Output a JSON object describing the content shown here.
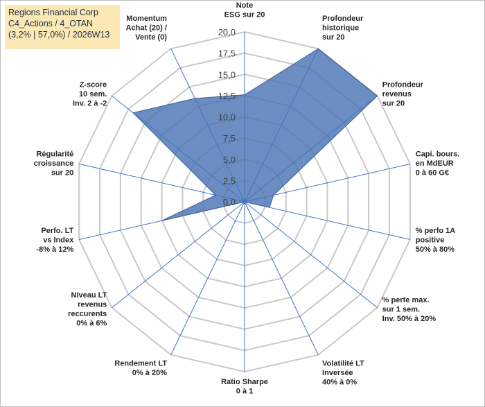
{
  "title_box": {
    "line1": "Regions Financial Corp",
    "line2": "C4_Actions / 4_OTAN",
    "line3": "(3,2% | 57,0%) / 2026W13"
  },
  "colors": {
    "title_bg": "#fbe8b4",
    "area": "#4a74b5",
    "spoke": "#4472c4",
    "grid": "#c8c8c8"
  },
  "chart_data": {
    "type": "radar",
    "range": [
      0,
      20
    ],
    "tick_step": 2.5,
    "tick_labels": [
      "0,0",
      "2,5",
      "5,0",
      "7,5",
      "10,0",
      "12,5",
      "15,0",
      "17,5",
      "20,0"
    ],
    "axes": [
      {
        "lines": [
          "Note",
          "ESG sur 20"
        ],
        "value": 12.6
      },
      {
        "lines": [
          "Profondeur",
          "historique",
          "sur 20"
        ],
        "value": 20.0
      },
      {
        "lines": [
          "Profondeur",
          "revenus",
          "sur 20"
        ],
        "value": 20.0
      },
      {
        "lines": [
          "Capi. bours.",
          "en MdEUR",
          "0 à 60 G€"
        ],
        "value": 3.5
      },
      {
        "lines": [
          "% perfo 1A",
          "positive",
          "50% à 80%"
        ],
        "value": 3.0
      },
      {
        "lines": [
          "% perte max.",
          "sur 1 sem.",
          "Inv. 50% à 20%"
        ],
        "value": 0.0
      },
      {
        "lines": [
          "Volatilité LT",
          "Inversée",
          "40% à 0%"
        ],
        "value": 0.0
      },
      {
        "lines": [
          "Ratio Sharpe",
          "0 à 1"
        ],
        "value": 0.0
      },
      {
        "lines": [
          "Rendement LT",
          "0% à 20%"
        ],
        "value": 0.0
      },
      {
        "lines": [
          "Niveau LT",
          "revenus",
          "reccurents",
          "0% à 6%"
        ],
        "value": 0.0
      },
      {
        "lines": [
          "Perfo. LT",
          "vs Index",
          "-8% à 12%"
        ],
        "value": 10.0
      },
      {
        "lines": [
          "Régularité",
          "croissance",
          "sur 20"
        ],
        "value": 3.5
      },
      {
        "lines": [
          "Z-score",
          "10 sem.",
          "Inv. 2 à -2"
        ],
        "value": 16.8
      },
      {
        "lines": [
          "Momentum",
          "Achat (20) /",
          "Vente (0)"
        ],
        "value": 13.5
      }
    ]
  }
}
